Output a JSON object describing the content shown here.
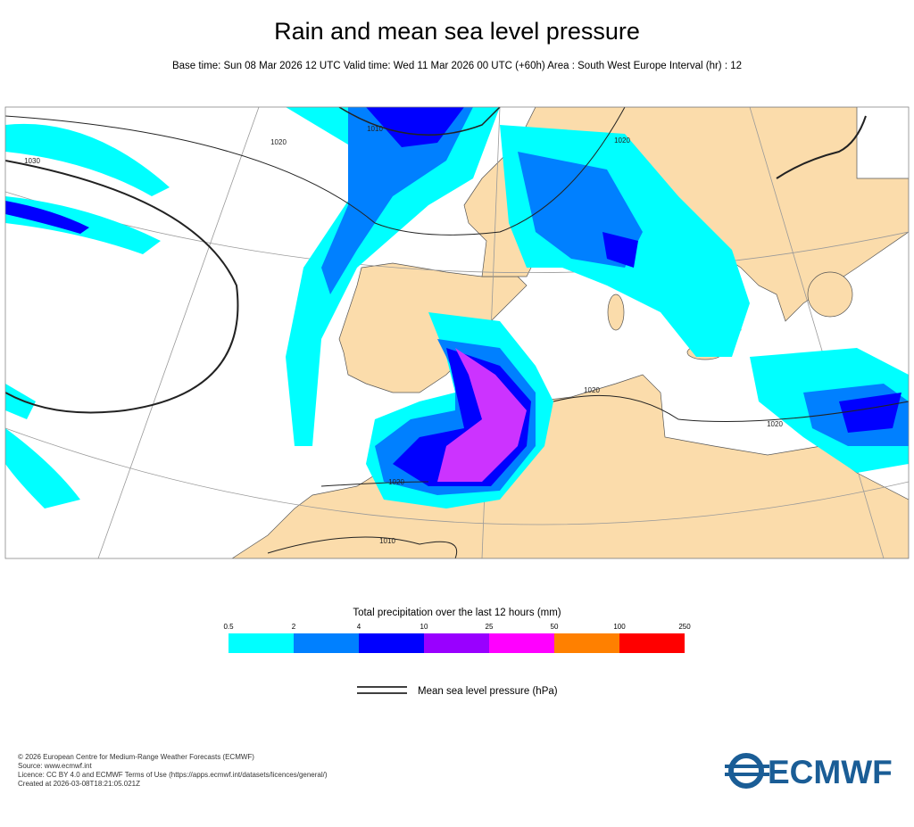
{
  "header": {
    "title": "Rain and mean sea level pressure",
    "subtitle": "Base time: Sun 08 Mar 2026 12 UTC Valid time: Wed 11 Mar 2026 00 UTC (+60h) Area : South West Europe Interval (hr) : 12"
  },
  "map": {
    "isobar_labels": [
      "1030",
      "1020",
      "1010",
      "1020",
      "1020",
      "1020",
      "1020",
      "1010"
    ]
  },
  "legend": {
    "title": "Total precipitation over the last 12 hours (mm)",
    "bounds": [
      0.5,
      2,
      4,
      10,
      25,
      50,
      100,
      250
    ],
    "colors": [
      "#00ffff",
      "#0080ff",
      "#0000ff",
      "#9900ff",
      "#ff00ff",
      "#ff8000",
      "#ff0000"
    ]
  },
  "pressure_legend": {
    "label": "Mean sea level pressure (hPa)"
  },
  "footer": {
    "lines": [
      "© 2026 European Centre for Medium-Range Weather Forecasts (ECMWF)",
      "Source: www.ecmwf.int",
      "Licence: CC BY 4.0 and ECMWF Terms of Use (https://apps.ecmwf.int/datasets/licences/general/)",
      "Created at 2026-03-08T18:21:05.021Z"
    ]
  },
  "logo": {
    "text": "ECMWF"
  }
}
